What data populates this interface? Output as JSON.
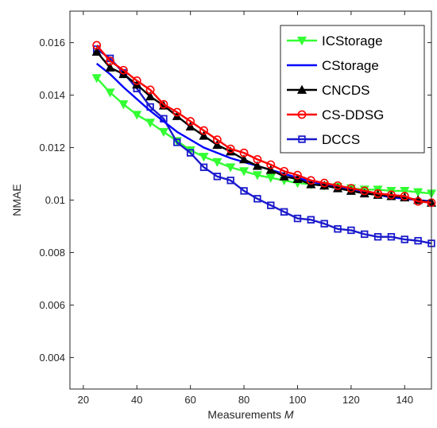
{
  "chart_data": {
    "type": "line",
    "xlabel": "Measurements",
    "xlabel_var": "M",
    "ylabel": "NMAE",
    "xlim": [
      15,
      150
    ],
    "ylim": [
      0.0028,
      0.0172
    ],
    "xticks": [
      20,
      40,
      60,
      80,
      100,
      120,
      140
    ],
    "yticks": [
      0.004,
      0.006,
      0.008,
      0.01,
      0.012,
      0.014,
      0.016
    ],
    "ytick_labels": [
      "0.004",
      "0.006",
      "0.008",
      "0.01",
      "0.012",
      "0.014",
      "0.016"
    ],
    "grid": false,
    "legend_position": "top-right",
    "x": [
      25,
      30,
      35,
      40,
      45,
      50,
      55,
      60,
      65,
      70,
      75,
      80,
      85,
      90,
      95,
      100,
      105,
      110,
      115,
      120,
      125,
      130,
      135,
      140,
      145,
      150
    ],
    "series": [
      {
        "name": "ICStorage",
        "color": "#33ff33",
        "marker": "triangle-down",
        "values": [
          0.01465,
          0.0141,
          0.01365,
          0.01325,
          0.01295,
          0.0126,
          0.01225,
          0.0119,
          0.01165,
          0.01145,
          0.01125,
          0.0111,
          0.01095,
          0.01085,
          0.01075,
          0.01065,
          0.0106,
          0.01055,
          0.0105,
          0.01045,
          0.0104,
          0.0104,
          0.01035,
          0.01035,
          0.0103,
          0.01025
        ]
      },
      {
        "name": "CStorage",
        "color": "#0000ff",
        "marker": "none",
        "values": [
          0.0152,
          0.0148,
          0.0143,
          0.01385,
          0.0134,
          0.013,
          0.0126,
          0.0123,
          0.012,
          0.0118,
          0.0116,
          0.01145,
          0.0113,
          0.01115,
          0.011,
          0.01085,
          0.0107,
          0.0106,
          0.0105,
          0.0104,
          0.0103,
          0.0102,
          0.0101,
          0.01005,
          0.01,
          0.00995
        ]
      },
      {
        "name": "CNCDS",
        "color": "#000000",
        "marker": "triangle-up",
        "values": [
          0.01565,
          0.01505,
          0.0148,
          0.0144,
          0.01395,
          0.0136,
          0.0132,
          0.0128,
          0.01245,
          0.0121,
          0.01185,
          0.01155,
          0.0113,
          0.01115,
          0.0109,
          0.0108,
          0.0106,
          0.01055,
          0.01045,
          0.01035,
          0.01025,
          0.0102,
          0.01015,
          0.0101,
          0.01,
          0.0099
        ]
      },
      {
        "name": "CS-DDSG",
        "color": "#ff0000",
        "marker": "circle",
        "values": [
          0.0159,
          0.0153,
          0.01495,
          0.01455,
          0.0142,
          0.01365,
          0.01335,
          0.013,
          0.01265,
          0.0123,
          0.01195,
          0.0118,
          0.01155,
          0.01135,
          0.0111,
          0.01095,
          0.01075,
          0.01065,
          0.01055,
          0.01045,
          0.01035,
          0.01025,
          0.0102,
          0.01015,
          0.00995,
          0.0099
        ]
      },
      {
        "name": "DCCS",
        "color": "#1a1acc",
        "marker": "square",
        "values": [
          0.01575,
          0.0154,
          0.01485,
          0.01425,
          0.01355,
          0.0131,
          0.0122,
          0.0118,
          0.01125,
          0.0109,
          0.01075,
          0.01035,
          0.01005,
          0.0098,
          0.00955,
          0.0093,
          0.00925,
          0.0091,
          0.0089,
          0.00885,
          0.0087,
          0.0086,
          0.0086,
          0.0085,
          0.00845,
          0.00835
        ]
      }
    ]
  }
}
